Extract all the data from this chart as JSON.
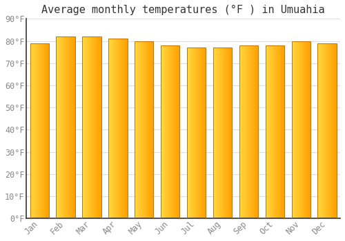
{
  "title": "Average monthly temperatures (°F ) in Umuahia",
  "months": [
    "Jan",
    "Feb",
    "Mar",
    "Apr",
    "May",
    "Jun",
    "Jul",
    "Aug",
    "Sep",
    "Oct",
    "Nov",
    "Dec"
  ],
  "values": [
    79,
    82,
    82,
    81,
    80,
    78,
    77,
    77,
    78,
    78,
    80,
    79
  ],
  "ylim": [
    0,
    90
  ],
  "yticks": [
    0,
    10,
    20,
    30,
    40,
    50,
    60,
    70,
    80,
    90
  ],
  "ytick_labels": [
    "0°F",
    "10°F",
    "20°F",
    "30°F",
    "40°F",
    "50°F",
    "60°F",
    "70°F",
    "80°F",
    "90°F"
  ],
  "bar_color_left": "#FFD840",
  "bar_color_right": "#FFA000",
  "bar_edge_color": "#C87000",
  "background_color": "#FFFFFF",
  "plot_bg_color": "#FFFFFF",
  "grid_color": "#DDDDDD",
  "title_fontsize": 11,
  "tick_fontsize": 8.5,
  "font_family": "monospace",
  "tick_color": "#888888",
  "spine_color": "#333333"
}
